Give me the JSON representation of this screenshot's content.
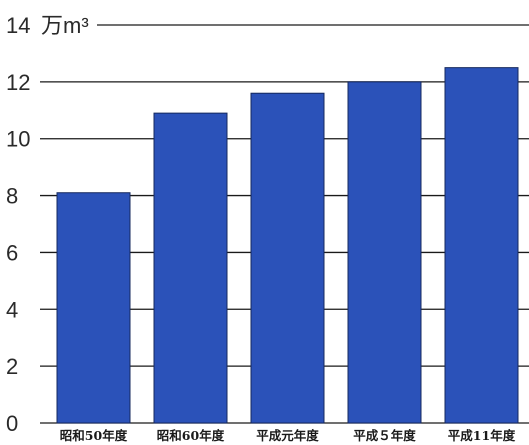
{
  "chart_data": {
    "type": "bar",
    "title": "",
    "xlabel": "",
    "ylabel": "",
    "unit_label": "万m³",
    "categories": [
      "昭和50年度",
      "昭和60年度",
      "平成元年度",
      "平成５年度",
      "平成11年度"
    ],
    "values": [
      8.1,
      10.9,
      11.6,
      12.0,
      12.5
    ],
    "ylim": [
      0,
      14
    ],
    "yticks": [
      0,
      2,
      4,
      6,
      8,
      10,
      12,
      14
    ],
    "grid": true,
    "bar_color": "#2b52b9"
  }
}
